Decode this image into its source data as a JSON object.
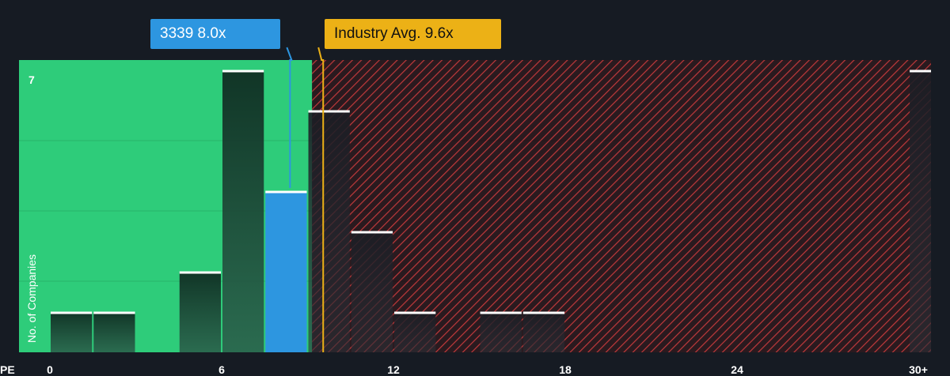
{
  "chart_data": {
    "type": "bar",
    "title": "",
    "xlabel": "PE",
    "ylabel": "No. of Companies",
    "x_ticks": [
      "0",
      "6",
      "12",
      "18",
      "24",
      "30+"
    ],
    "x_tick_values": [
      0,
      6,
      12,
      18,
      24,
      30
    ],
    "y_tick_label": "7",
    "xlim": [
      0,
      30.4
    ],
    "ylim": [
      0,
      7
    ],
    "bins": [
      {
        "x0": 0,
        "x1": 1.5,
        "value": 1
      },
      {
        "x0": 1.5,
        "x1": 3,
        "value": 1
      },
      {
        "x0": 4.5,
        "x1": 6,
        "value": 2
      },
      {
        "x0": 6,
        "x1": 7.5,
        "value": 7
      },
      {
        "x0": 7.5,
        "x1": 9,
        "value": 4,
        "highlight": true
      },
      {
        "x0": 9,
        "x1": 10.5,
        "value": 6
      },
      {
        "x0": 10.5,
        "x1": 12,
        "value": 3
      },
      {
        "x0": 12,
        "x1": 13.5,
        "value": 1
      },
      {
        "x0": 15,
        "x1": 16.5,
        "value": 1
      },
      {
        "x0": 16.5,
        "x1": 18,
        "value": 1
      },
      {
        "x0": 30,
        "x1": 30.8,
        "value": 7
      }
    ],
    "company": {
      "label": "3339 8.0x",
      "pe": 8.0
    },
    "industry": {
      "label": "Industry Avg. 9.6x",
      "pe": 9.6
    },
    "grid": true,
    "colors": {
      "background": "#161b23",
      "fair_zone": "#2ecc7a",
      "expensive_hatch": "#c0393b",
      "company": "#2d96e0",
      "industry": "#ecb116",
      "bar_top": "#ffffff"
    }
  }
}
